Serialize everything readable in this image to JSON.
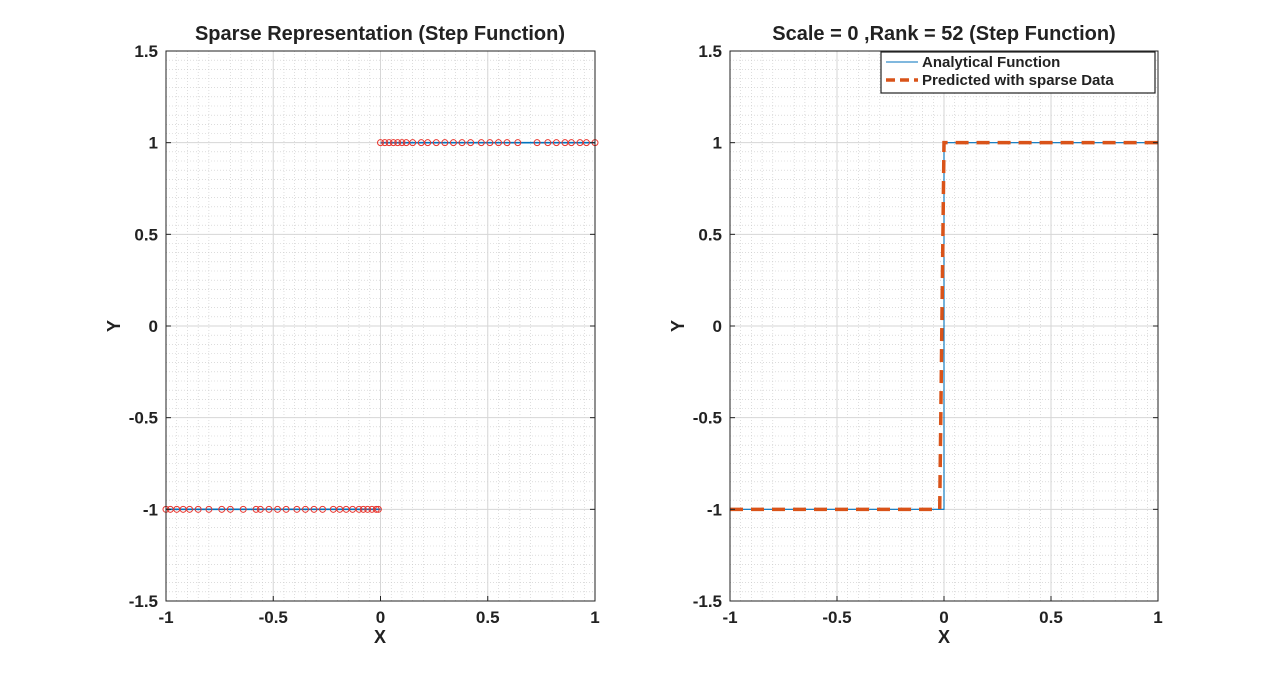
{
  "chart_data": [
    {
      "type": "scatter",
      "title": "Sparse Representation (Step Function)",
      "xlabel": "X",
      "ylabel": "Y",
      "xlim": [
        -1,
        1
      ],
      "ylim": [
        -1.5,
        1.5
      ],
      "xticks": [
        "-1",
        "-0.5",
        "0",
        "0.5",
        "1"
      ],
      "yticks": [
        "1.5",
        "1",
        "0.5",
        "0",
        "-0.5",
        "-1",
        "-1.5"
      ],
      "grid": true,
      "minor_grid": true,
      "series": [
        {
          "kind": "line",
          "color": "#0072BD",
          "segments": [
            {
              "x": [
                -1,
                0
              ],
              "y": [
                -1,
                -1
              ]
            },
            {
              "x": [
                0,
                1
              ],
              "y": [
                1,
                1
              ]
            }
          ]
        },
        {
          "kind": "markers",
          "marker": "circle",
          "color": "#E8342C",
          "x": [
            -1.0,
            -0.98,
            -0.95,
            -0.92,
            -0.89,
            -0.85,
            -0.8,
            -0.74,
            -0.7,
            -0.64,
            -0.58,
            -0.56,
            -0.52,
            -0.48,
            -0.44,
            -0.39,
            -0.35,
            -0.31,
            -0.27,
            -0.22,
            -0.19,
            -0.16,
            -0.13,
            -0.1,
            -0.08,
            -0.06,
            -0.04,
            -0.02,
            -0.01,
            0.0,
            0.02,
            0.04,
            0.06,
            0.08,
            0.1,
            0.12,
            0.15,
            0.19,
            0.22,
            0.26,
            0.3,
            0.34,
            0.38,
            0.42,
            0.47,
            0.51,
            0.55,
            0.59,
            0.64,
            0.73,
            0.78,
            0.82,
            0.86,
            0.89,
            0.93,
            0.96,
            1.0
          ],
          "y": [
            -1,
            -1,
            -1,
            -1,
            -1,
            -1,
            -1,
            -1,
            -1,
            -1,
            -1,
            -1,
            -1,
            -1,
            -1,
            -1,
            -1,
            -1,
            -1,
            -1,
            -1,
            -1,
            -1,
            -1,
            -1,
            -1,
            -1,
            -1,
            -1,
            1,
            1,
            1,
            1,
            1,
            1,
            1,
            1,
            1,
            1,
            1,
            1,
            1,
            1,
            1,
            1,
            1,
            1,
            1,
            1,
            1,
            1,
            1,
            1,
            1,
            1,
            1,
            1
          ]
        }
      ]
    },
    {
      "type": "line",
      "title": "Scale = 0 ,Rank = 52 (Step Function)",
      "xlabel": "X",
      "ylabel": "Y",
      "xlim": [
        -1,
        1
      ],
      "ylim": [
        -1.5,
        1.5
      ],
      "xticks": [
        "-1",
        "-0.5",
        "0",
        "0.5",
        "1"
      ],
      "yticks": [
        "1.5",
        "1",
        "0.5",
        "0",
        "-0.5",
        "-1",
        "-1.5"
      ],
      "grid": true,
      "minor_grid": true,
      "legend_position": "top-right",
      "series": [
        {
          "name": "Analytical Function",
          "kind": "line",
          "style": "solid",
          "color": "#0072BD",
          "x": [
            -1,
            0,
            0,
            1
          ],
          "y": [
            -1,
            -1,
            1,
            1
          ]
        },
        {
          "name": "Predicted with sparse Data",
          "kind": "line",
          "style": "dashed",
          "color": "#D95319",
          "x": [
            -1,
            -0.02,
            0.0,
            1
          ],
          "y": [
            -1,
            -1,
            1,
            1
          ]
        }
      ]
    }
  ]
}
